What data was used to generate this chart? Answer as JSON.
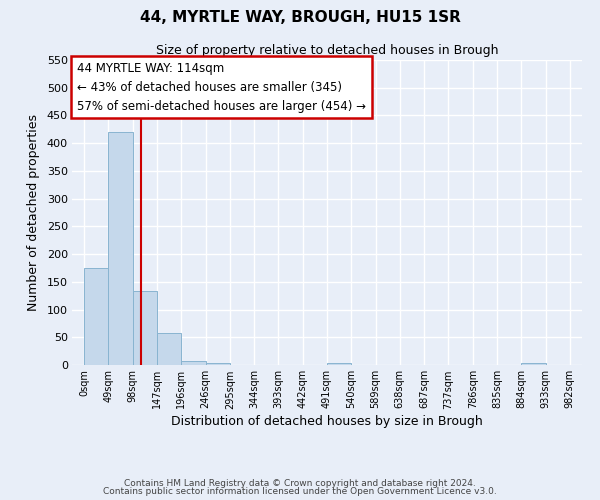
{
  "title": "44, MYRTLE WAY, BROUGH, HU15 1SR",
  "subtitle": "Size of property relative to detached houses in Brough",
  "xlabel": "Distribution of detached houses by size in Brough",
  "ylabel": "Number of detached properties",
  "bin_labels": [
    "0sqm",
    "49sqm",
    "98sqm",
    "147sqm",
    "196sqm",
    "246sqm",
    "295sqm",
    "344sqm",
    "393sqm",
    "442sqm",
    "491sqm",
    "540sqm",
    "589sqm",
    "638sqm",
    "687sqm",
    "737sqm",
    "786sqm",
    "835sqm",
    "884sqm",
    "933sqm",
    "982sqm"
  ],
  "bar_values": [
    175,
    420,
    133,
    57,
    7,
    4,
    0,
    0,
    0,
    0,
    3,
    0,
    0,
    0,
    0,
    0,
    0,
    0,
    3,
    0,
    0
  ],
  "bar_color": "#c5d8eb",
  "bar_edgecolor": "#89b4d0",
  "vline_x_data": 114,
  "ylim_max": 550,
  "yticks": [
    0,
    50,
    100,
    150,
    200,
    250,
    300,
    350,
    400,
    450,
    500,
    550
  ],
  "annotation_title": "44 MYRTLE WAY: 114sqm",
  "annotation_line1": "← 43% of detached houses are smaller (345)",
  "annotation_line2": "57% of semi-detached houses are larger (454) →",
  "vline_color": "#cc0000",
  "ann_edge_color": "#cc0000",
  "footer_line1": "Contains HM Land Registry data © Crown copyright and database right 2024.",
  "footer_line2": "Contains public sector information licensed under the Open Government Licence v3.0.",
  "bin_width": 49,
  "num_bins": 21,
  "bg_color": "#e8eef8",
  "grid_color": "#ffffff",
  "figsize": [
    6.0,
    5.0
  ],
  "dpi": 100
}
